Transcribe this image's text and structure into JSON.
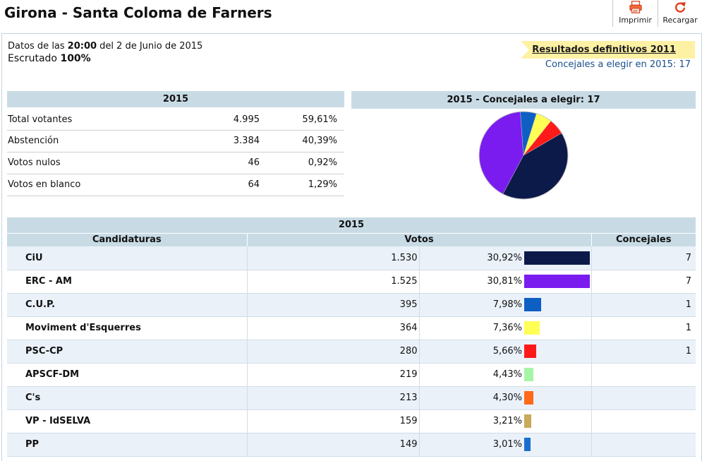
{
  "header": {
    "title": "Girona - Santa Coloma de Farners",
    "print_label": "Imprimir",
    "reload_label": "Recargar"
  },
  "info": {
    "data_prefix": "Datos de las",
    "time": "20:00",
    "date_text": "del 2 de Junio de 2015",
    "scrutinized_label": "Escrutado",
    "scrutinized_value": "100%"
  },
  "banner": {
    "link_text": "Resultados definitivos 2011",
    "councillors_text": "Concejales a elegir en 2015: 17"
  },
  "summary": {
    "header": "2015",
    "rows": [
      {
        "label": "Total votantes",
        "count": "4.995",
        "pct": "59,61%"
      },
      {
        "label": "Abstención",
        "count": "3.384",
        "pct": "40,39%"
      },
      {
        "label": "Votos nulos",
        "count": "46",
        "pct": "0,92%"
      },
      {
        "label": "Votos en blanco",
        "count": "64",
        "pct": "1,29%"
      }
    ]
  },
  "pie": {
    "header": "2015 - Concejales a elegir: 17",
    "slices": [
      {
        "party": "CiU",
        "seats": 7,
        "color": "#0c1a4a"
      },
      {
        "party": "ERC - AM",
        "seats": 7,
        "color": "#7a1cf0"
      },
      {
        "party": "C.U.P.",
        "seats": 1,
        "color": "#0e5fc4"
      },
      {
        "party": "Moviment d'Esquerres",
        "seats": 1,
        "color": "#ffff55"
      },
      {
        "party": "PSC-CP",
        "seats": 1,
        "color": "#ff1a1a"
      }
    ]
  },
  "results": {
    "year": "2015",
    "col_parties": "Candidaturas",
    "col_votes": "Votos",
    "col_seats": "Concejales",
    "rows": [
      {
        "party": "CiU",
        "votes": "1.530",
        "pct": "30,92%",
        "pct_value": 30.92,
        "seats": "7",
        "color": "#0c1a4a"
      },
      {
        "party": "ERC - AM",
        "votes": "1.525",
        "pct": "30,81%",
        "pct_value": 30.81,
        "seats": "7",
        "color": "#7a1cf0"
      },
      {
        "party": "C.U.P.",
        "votes": "395",
        "pct": "7,98%",
        "pct_value": 7.98,
        "seats": "1",
        "color": "#0e5fc4"
      },
      {
        "party": "Moviment d'Esquerres",
        "votes": "364",
        "pct": "7,36%",
        "pct_value": 7.36,
        "seats": "1",
        "color": "#ffff55"
      },
      {
        "party": "PSC-CP",
        "votes": "280",
        "pct": "5,66%",
        "pct_value": 5.66,
        "seats": "1",
        "color": "#ff1a1a"
      },
      {
        "party": "APSCF-DM",
        "votes": "219",
        "pct": "4,43%",
        "pct_value": 4.43,
        "seats": "",
        "color": "#a6f5a6"
      },
      {
        "party": "C's",
        "votes": "213",
        "pct": "4,30%",
        "pct_value": 4.3,
        "seats": "",
        "color": "#ff6a1a"
      },
      {
        "party": "VP - IdSELVA",
        "votes": "159",
        "pct": "3,21%",
        "pct_value": 3.21,
        "seats": "",
        "color": "#c9a95a"
      },
      {
        "party": "PP",
        "votes": "149",
        "pct": "3,01%",
        "pct_value": 3.01,
        "seats": "",
        "color": "#1a6fcc"
      }
    ]
  }
}
